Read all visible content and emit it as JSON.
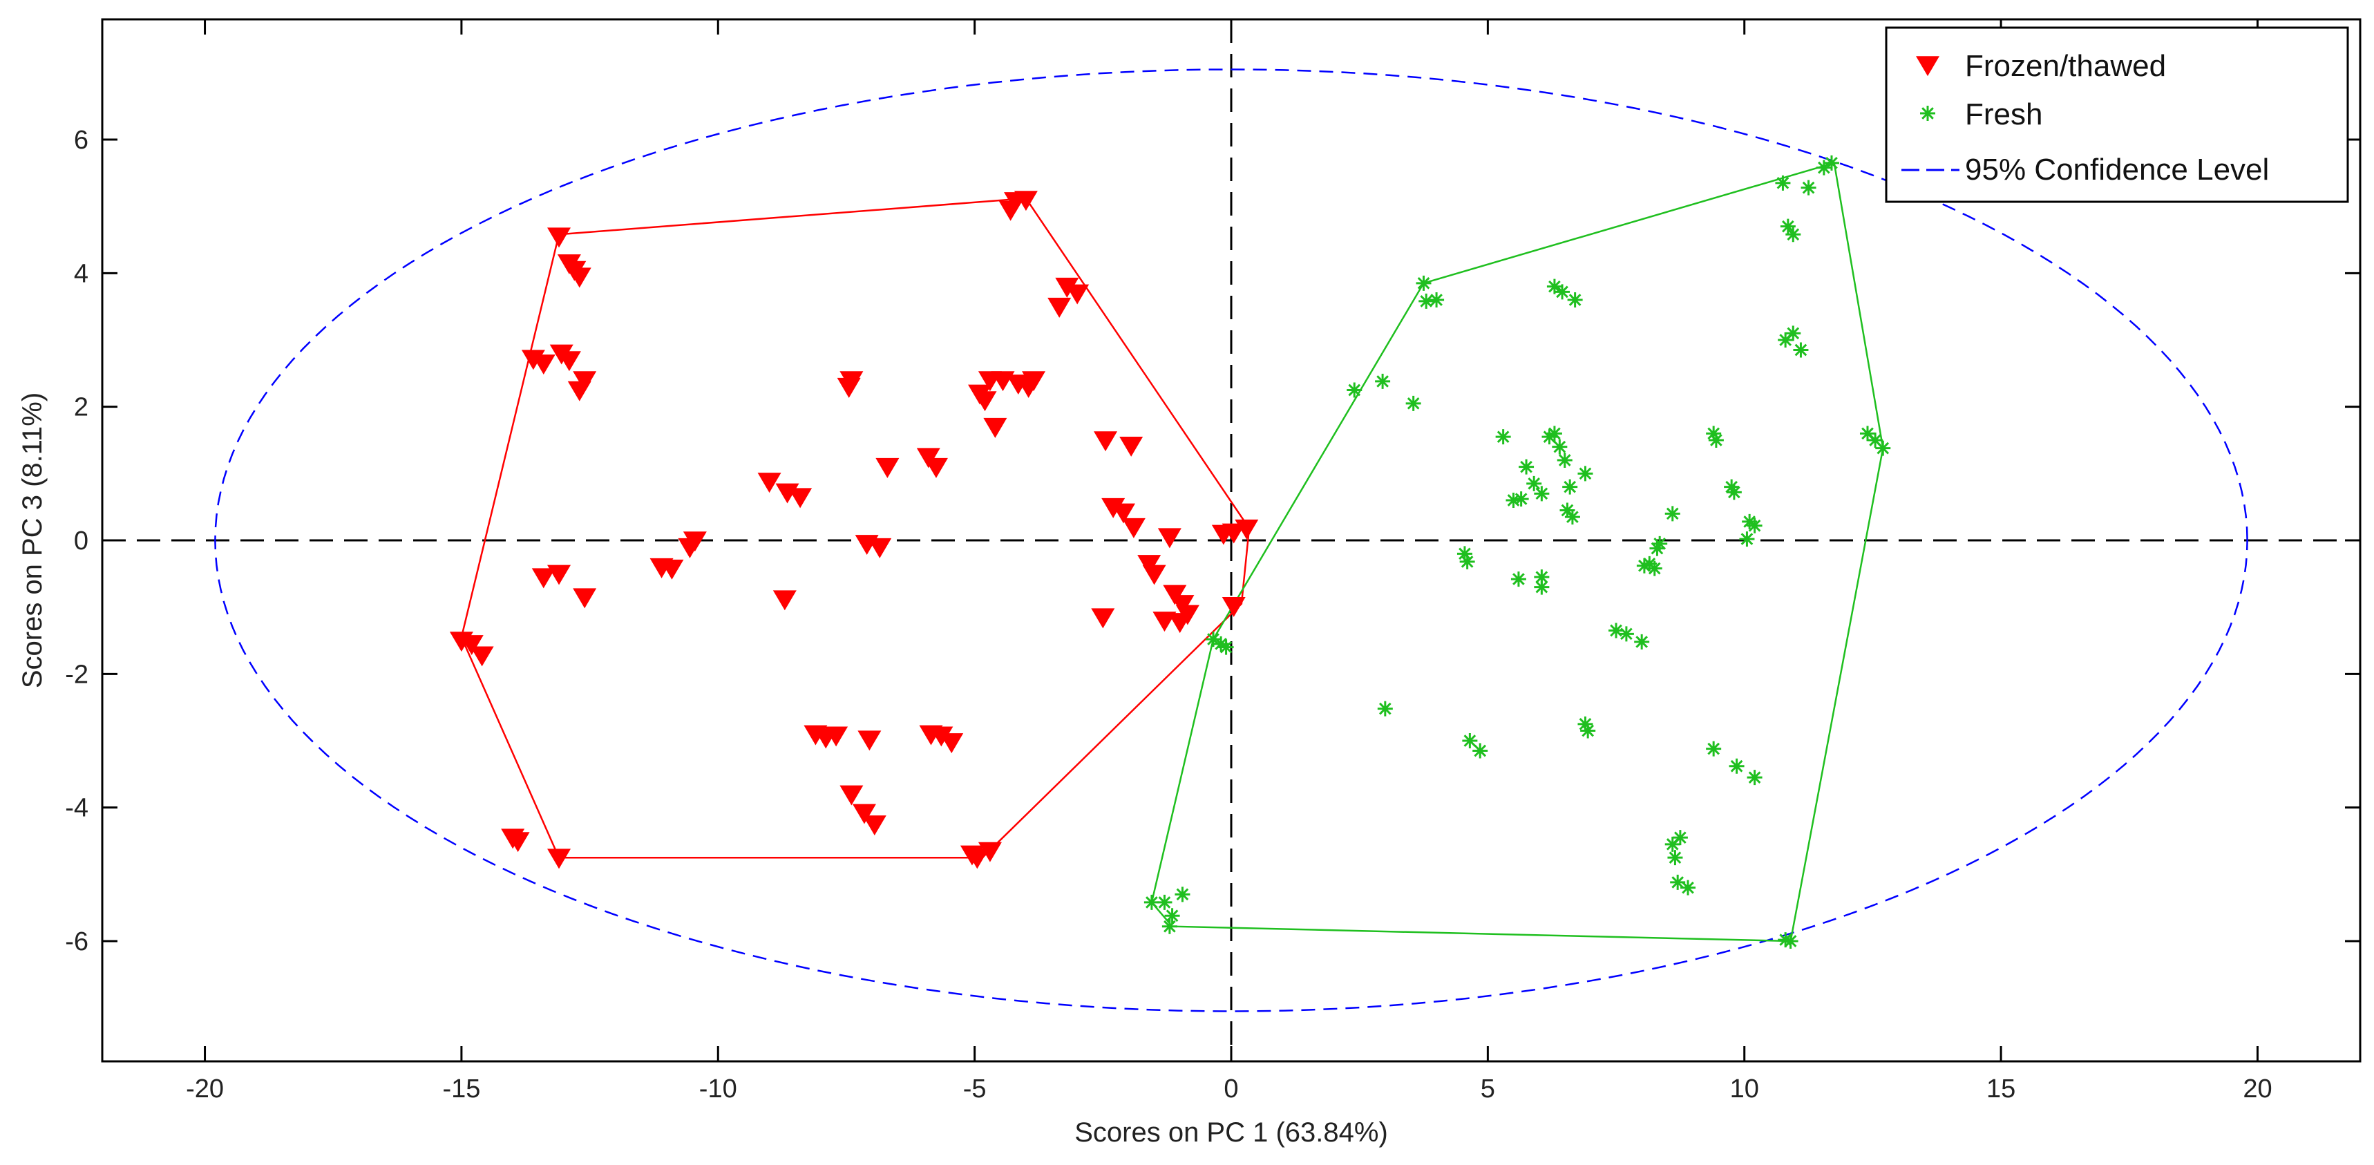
{
  "chart_data": {
    "type": "scatter",
    "title": "",
    "xlabel": "Scores on PC 1 (63.84%)",
    "ylabel": "Scores on PC 3 (8.11%)",
    "xlim": [
      -22,
      22
    ],
    "ylim": [
      -7.8,
      7.8
    ],
    "xticks": [
      -20,
      -15,
      -10,
      -5,
      0,
      5,
      10,
      15,
      20
    ],
    "yticks": [
      -6,
      -4,
      -2,
      0,
      2,
      4,
      6
    ],
    "xtick_labels": [
      "-20",
      "-15",
      "-10",
      "-5",
      "0",
      "5",
      "10",
      "15",
      "20"
    ],
    "ytick_labels": [
      "-6",
      "-4",
      "-2",
      "0",
      "2",
      "4",
      "6"
    ],
    "grid": false,
    "legend_position": "top-right",
    "colors": {
      "frozen": "#ff0000",
      "fresh": "#1fbf1f",
      "ellipse": "#0000ff",
      "axes": "#000000"
    },
    "series": [
      {
        "name": "Frozen/thawed",
        "marker": "triangle-down",
        "color": "#ff0000",
        "points": [
          [
            -13.1,
            4.55
          ],
          [
            -12.9,
            4.15
          ],
          [
            -12.8,
            4.05
          ],
          [
            -12.7,
            3.95
          ],
          [
            -13.6,
            2.72
          ],
          [
            -13.4,
            2.65
          ],
          [
            -13.05,
            2.8
          ],
          [
            -12.9,
            2.7
          ],
          [
            -12.7,
            2.25
          ],
          [
            -12.6,
            2.4
          ],
          [
            -13.4,
            -0.55
          ],
          [
            -13.1,
            -0.5
          ],
          [
            -12.6,
            -0.85
          ],
          [
            -15.0,
            -1.5
          ],
          [
            -14.8,
            -1.55
          ],
          [
            -14.6,
            -1.72
          ],
          [
            -14.0,
            -4.45
          ],
          [
            -13.9,
            -4.5
          ],
          [
            -13.1,
            -4.75
          ],
          [
            -11.1,
            -0.4
          ],
          [
            -10.9,
            -0.42
          ],
          [
            -10.55,
            -0.1
          ],
          [
            -10.45,
            0.0
          ],
          [
            -9.0,
            0.88
          ],
          [
            -8.65,
            0.72
          ],
          [
            -8.4,
            0.65
          ],
          [
            -8.7,
            -0.88
          ],
          [
            -7.4,
            2.4
          ],
          [
            -7.45,
            2.3
          ],
          [
            -6.7,
            1.1
          ],
          [
            -7.1,
            -0.05
          ],
          [
            -6.85,
            -0.1
          ],
          [
            -8.1,
            -2.9
          ],
          [
            -7.9,
            -2.95
          ],
          [
            -7.7,
            -2.92
          ],
          [
            -7.05,
            -2.98
          ],
          [
            -7.4,
            -3.8
          ],
          [
            -7.15,
            -4.08
          ],
          [
            -6.95,
            -4.25
          ],
          [
            -5.9,
            1.25
          ],
          [
            -5.75,
            1.1
          ],
          [
            -5.85,
            -2.9
          ],
          [
            -5.65,
            -2.92
          ],
          [
            -5.45,
            -3.02
          ],
          [
            -5.05,
            -4.7
          ],
          [
            -4.95,
            -4.75
          ],
          [
            -4.7,
            -4.65
          ],
          [
            -4.9,
            2.2
          ],
          [
            -4.8,
            2.1
          ],
          [
            -4.7,
            2.4
          ],
          [
            -4.45,
            2.4
          ],
          [
            -4.6,
            1.7
          ],
          [
            -4.15,
            2.35
          ],
          [
            -3.95,
            2.3
          ],
          [
            -3.85,
            2.4
          ],
          [
            -4.2,
            5.08
          ],
          [
            -4.0,
            5.1
          ],
          [
            -4.3,
            4.95
          ],
          [
            -3.2,
            3.8
          ],
          [
            -3.0,
            3.7
          ],
          [
            -3.35,
            3.5
          ],
          [
            -2.45,
            1.5
          ],
          [
            -1.95,
            1.42
          ],
          [
            -2.5,
            -1.15
          ],
          [
            -2.3,
            0.5
          ],
          [
            -2.1,
            0.42
          ],
          [
            -1.9,
            0.2
          ],
          [
            -1.6,
            -0.35
          ],
          [
            -1.5,
            -0.5
          ],
          [
            -1.2,
            0.05
          ],
          [
            -1.1,
            -0.8
          ],
          [
            -0.95,
            -0.95
          ],
          [
            -0.85,
            -1.1
          ],
          [
            -1.3,
            -1.2
          ],
          [
            -1.0,
            -1.22
          ],
          [
            -0.15,
            0.1
          ],
          [
            0.05,
            0.12
          ],
          [
            0.3,
            0.18
          ],
          [
            0.05,
            -0.98
          ]
        ]
      },
      {
        "name": "Fresh",
        "marker": "asterisk",
        "color": "#1fbf1f",
        "points": [
          [
            -1.55,
            -5.42
          ],
          [
            -1.3,
            -5.42
          ],
          [
            -1.15,
            -5.62
          ],
          [
            -1.2,
            -5.78
          ],
          [
            -0.95,
            -5.3
          ],
          [
            -0.35,
            -1.48
          ],
          [
            -0.2,
            -1.55
          ],
          [
            -0.1,
            -1.6
          ],
          [
            2.4,
            2.25
          ],
          [
            2.95,
            2.38
          ],
          [
            3.55,
            2.05
          ],
          [
            3.0,
            -2.52
          ],
          [
            3.75,
            3.85
          ],
          [
            3.8,
            3.58
          ],
          [
            4.0,
            3.6
          ],
          [
            4.55,
            -0.2
          ],
          [
            4.6,
            -0.32
          ],
          [
            4.65,
            -3.0
          ],
          [
            4.85,
            -3.15
          ],
          [
            5.3,
            1.55
          ],
          [
            5.5,
            0.6
          ],
          [
            5.65,
            0.62
          ],
          [
            5.6,
            -0.58
          ],
          [
            5.75,
            1.1
          ],
          [
            5.9,
            0.85
          ],
          [
            6.05,
            0.7
          ],
          [
            6.05,
            -0.55
          ],
          [
            6.05,
            -0.7
          ],
          [
            6.2,
            1.55
          ],
          [
            6.3,
            1.6
          ],
          [
            6.4,
            1.4
          ],
          [
            6.5,
            1.2
          ],
          [
            6.6,
            0.8
          ],
          [
            6.55,
            0.45
          ],
          [
            6.65,
            0.35
          ],
          [
            6.3,
            3.8
          ],
          [
            6.45,
            3.72
          ],
          [
            6.7,
            3.6
          ],
          [
            6.9,
            1.0
          ],
          [
            6.9,
            -2.75
          ],
          [
            6.95,
            -2.85
          ],
          [
            7.5,
            -1.35
          ],
          [
            7.7,
            -1.4
          ],
          [
            8.0,
            -1.52
          ],
          [
            8.05,
            -0.38
          ],
          [
            8.15,
            -0.35
          ],
          [
            8.25,
            -0.42
          ],
          [
            8.3,
            -0.12
          ],
          [
            8.35,
            -0.05
          ],
          [
            8.6,
            0.4
          ],
          [
            8.6,
            -4.55
          ],
          [
            8.65,
            -4.75
          ],
          [
            8.75,
            -4.45
          ],
          [
            8.7,
            -5.12
          ],
          [
            8.9,
            -5.2
          ],
          [
            9.4,
            1.6
          ],
          [
            9.45,
            1.5
          ],
          [
            9.4,
            -3.12
          ],
          [
            9.75,
            0.8
          ],
          [
            9.8,
            0.72
          ],
          [
            9.85,
            -3.38
          ],
          [
            10.2,
            -3.55
          ],
          [
            10.05,
            0.02
          ],
          [
            10.1,
            0.28
          ],
          [
            10.2,
            0.22
          ],
          [
            10.75,
            5.35
          ],
          [
            10.85,
            4.7
          ],
          [
            10.95,
            4.58
          ],
          [
            10.8,
            3.0
          ],
          [
            10.95,
            3.1
          ],
          [
            11.1,
            2.85
          ],
          [
            11.25,
            5.28
          ],
          [
            11.55,
            5.58
          ],
          [
            11.7,
            5.65
          ],
          [
            12.4,
            1.6
          ],
          [
            12.55,
            1.5
          ],
          [
            12.7,
            1.38
          ],
          [
            10.8,
            -5.98
          ],
          [
            10.9,
            -6.0
          ]
        ]
      }
    ],
    "hulls": [
      {
        "series": "Frozen/thawed",
        "color": "#ff0000",
        "vertices": [
          [
            -13.1,
            4.58
          ],
          [
            -4.0,
            5.12
          ],
          [
            0.35,
            0.18
          ],
          [
            0.2,
            -0.95
          ],
          [
            -4.85,
            -4.75
          ],
          [
            -13.1,
            -4.75
          ],
          [
            -15.0,
            -1.45
          ]
        ]
      },
      {
        "series": "Fresh",
        "color": "#1fbf1f",
        "vertices": [
          [
            -1.55,
            -5.42
          ],
          [
            -0.35,
            -1.48
          ],
          [
            3.75,
            3.85
          ],
          [
            11.75,
            5.65
          ],
          [
            12.7,
            1.38
          ],
          [
            10.9,
            -6.0
          ],
          [
            -1.15,
            -5.78
          ]
        ]
      }
    ],
    "confidence_ellipse": {
      "label": "95% Confidence Level",
      "center": [
        0,
        0
      ],
      "x_semi_axis": 19.8,
      "y_semi_axis": 7.05,
      "color": "#0000ff",
      "style": "dashed"
    },
    "reference_lines": [
      {
        "orientation": "horizontal",
        "value": 0,
        "style": "dashed",
        "color": "#000000"
      },
      {
        "orientation": "vertical",
        "value": 0,
        "style": "dashed",
        "color": "#000000"
      }
    ],
    "legend": [
      {
        "label": "Frozen/thawed",
        "marker": "triangle-down",
        "color": "#ff0000"
      },
      {
        "label": "Fresh",
        "marker": "asterisk",
        "color": "#1fbf1f"
      },
      {
        "label": "95% Confidence Level",
        "marker": "dashed-line",
        "color": "#0000ff"
      }
    ]
  }
}
